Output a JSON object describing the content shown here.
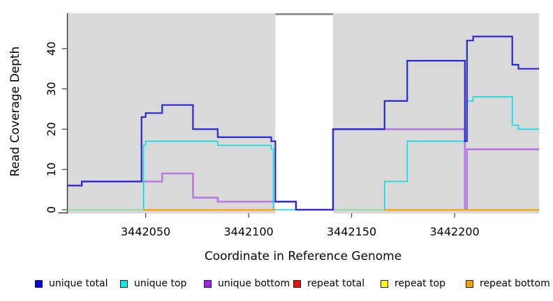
{
  "chart_data": {
    "type": "line",
    "subtype": "step-coverage-plot",
    "title": "",
    "xlabel": "Coordinate in Reference Genome",
    "ylabel": "Read Coverage Depth",
    "xlim": [
      3442012,
      3442241
    ],
    "ylim": [
      0,
      48
    ],
    "x_ticks": [
      3442050,
      3442100,
      3442150,
      3442200
    ],
    "y_ticks": [
      0,
      10,
      20,
      30,
      40
    ],
    "grid": "off",
    "legend_position": "bottom",
    "shaded_regions": [
      {
        "name": "left-shaded-region",
        "from": 3442012,
        "to": 3442113,
        "color": "#d9d9d9"
      },
      {
        "name": "right-shaded-region",
        "from": 3442141,
        "to": 3442241,
        "color": "#d9d9d9"
      }
    ],
    "gap_region": {
      "from": 3442113,
      "to": 3442141,
      "marker_color": "#898989"
    },
    "series": [
      {
        "name": "unique total",
        "line_color": "#2828d8",
        "legend_color": "#0000e8",
        "width": 2.2,
        "steps": [
          [
            3442012,
            6
          ],
          [
            3442019,
            7
          ],
          [
            3442048,
            23
          ],
          [
            3442050,
            24
          ],
          [
            3442058,
            26
          ],
          [
            3442073,
            20
          ],
          [
            3442085,
            18
          ],
          [
            3442111,
            17
          ],
          [
            3442113,
            2
          ],
          [
            3442123,
            0
          ],
          [
            3442141,
            20
          ],
          [
            3442166,
            27
          ],
          [
            3442177,
            37
          ],
          [
            3442205,
            17
          ],
          [
            3442206,
            42
          ],
          [
            3442209,
            43
          ],
          [
            3442228,
            36
          ],
          [
            3442231,
            35
          ]
        ]
      },
      {
        "name": "unique top",
        "line_color": "#00dfe8",
        "legend_color": "#00eded",
        "width": 1.6,
        "steps": [
          [
            3442012,
            0
          ],
          [
            3442049,
            16
          ],
          [
            3442050,
            17
          ],
          [
            3442085,
            16
          ],
          [
            3442111,
            15
          ],
          [
            3442112,
            0
          ],
          [
            3442166,
            7
          ],
          [
            3442177,
            17
          ],
          [
            3442206,
            27
          ],
          [
            3442209,
            28
          ],
          [
            3442228,
            21
          ],
          [
            3442231,
            20
          ]
        ]
      },
      {
        "name": "unique bottom",
        "line_color": "#b579e3",
        "legend_color": "#a021f0",
        "width": 2.6,
        "steps": [
          [
            3442012,
            6
          ],
          [
            3442019,
            7
          ],
          [
            3442058,
            9
          ],
          [
            3442073,
            3
          ],
          [
            3442085,
            2
          ],
          [
            3442123,
            0
          ],
          [
            3442141,
            20
          ],
          [
            3442205,
            0
          ],
          [
            3442206,
            15
          ]
        ]
      },
      {
        "name": "repeat total",
        "line_color": "#ed0e10",
        "legend_color": "#ed0e10",
        "width": 2,
        "constant_value": 0
      },
      {
        "name": "repeat top",
        "line_color": "#fdfd0c",
        "legend_color": "#fdfd0c",
        "width": 2,
        "constant_value": 0
      },
      {
        "name": "repeat bottom",
        "line_color": "#ffa000",
        "legend_color": "#ffa000",
        "width": 2.2,
        "constant_value": 0
      }
    ],
    "baseline_segments": [
      {
        "name": "repeat-top-over-unique-top-blend",
        "color": "#a5d9a2",
        "from": 3442012,
        "to": 3442049
      },
      {
        "name": "repeat-bottom",
        "color": "#ffa000",
        "from": 3442049,
        "to": 3442113
      },
      {
        "name": "repeat-top-over-unique-top-blend",
        "color": "#a5d9a2",
        "from": 3442141,
        "to": 3442166
      },
      {
        "name": "repeat-bottom",
        "color": "#ffa000",
        "from": 3442166,
        "to": 3442241
      }
    ]
  },
  "legend": {
    "items": [
      {
        "label": "unique total",
        "color": "#0000e8"
      },
      {
        "label": "unique top",
        "color": "#00eded"
      },
      {
        "label": "unique bottom",
        "color": "#a021f0"
      },
      {
        "label": "repeat total",
        "color": "#ed0e10"
      },
      {
        "label": "repeat top",
        "color": "#fdfd0c"
      },
      {
        "label": "repeat bottom",
        "color": "#ffa000"
      }
    ]
  },
  "axis": {
    "text_color": "#000000",
    "line_color": "#333333"
  }
}
